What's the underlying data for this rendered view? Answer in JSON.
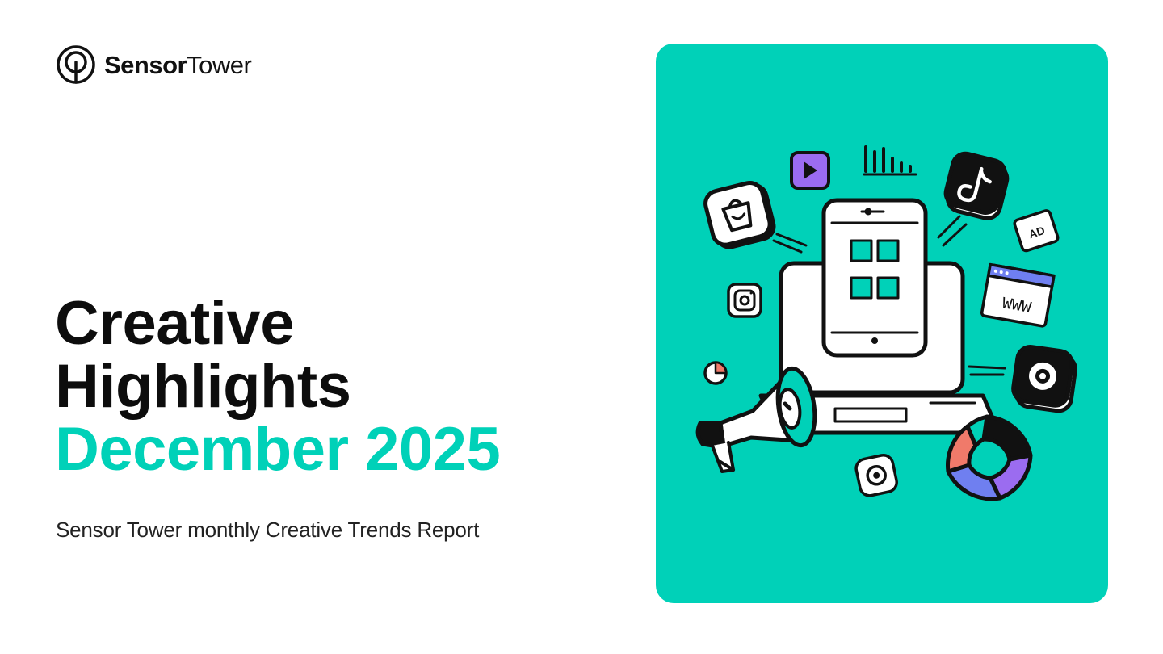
{
  "brand": {
    "name_bold": "Sensor",
    "name_regular": "Tower"
  },
  "title": {
    "line1": "Creative",
    "line2": "Highlights",
    "line3": "December 2025"
  },
  "subtitle": "Sensor Tower monthly Creative Trends Report",
  "illustration": {
    "ad_badge": "AD",
    "www_label": "WWW",
    "colors": {
      "panel": "#00d1b8",
      "accent_text": "#00d1b8",
      "purple": "#9b6cf0",
      "coral": "#f07a6a",
      "blue": "#6f7ff0",
      "ink": "#111111"
    },
    "icons": [
      "shopping-bag-icon",
      "play-icon",
      "bar-chart-icon",
      "tiktok-icon",
      "ad-icon",
      "browser-www-icon",
      "instagram-icon",
      "smartphone-icon",
      "laptop-icon",
      "megaphone-icon",
      "pie-chart-icon",
      "camera-icon",
      "donut-chart-icon",
      "podcast-icon"
    ]
  }
}
